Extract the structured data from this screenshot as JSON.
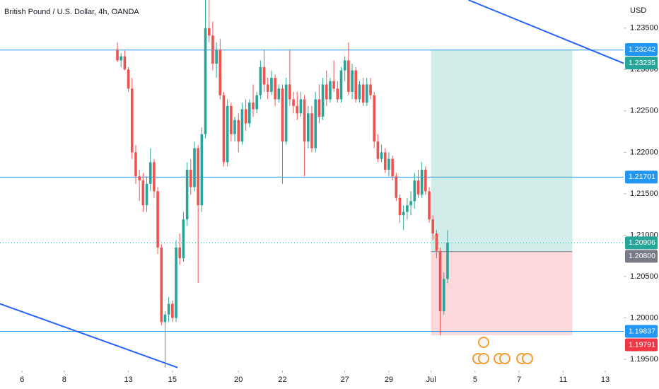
{
  "chart_data": {
    "type": "candlestick",
    "title": "British Pound / U.S. Dollar, 4h, OANDA",
    "currency": "USD",
    "up_color": "#26a69a",
    "down_color": "#ef5350",
    "open": [
      1.2324,
      1.2311,
      1.2316,
      1.23,
      1.2277,
      1.22,
      1.2171,
      1.2166,
      1.2136,
      1.2162,
      1.2188,
      1.2153,
      1.2085,
      1.1995,
      1.2004,
      1.2017,
      1.2,
      1.2085,
      1.2072,
      1.2119,
      1.2179,
      1.2158,
      1.2205,
      1.2136,
      1.2222,
      1.235,
      1.2341,
      1.2307,
      1.2324,
      1.2269,
      1.2188,
      1.2256,
      1.2222,
      1.2239,
      1.2213,
      1.2252,
      1.2235,
      1.226,
      1.2252,
      1.2269,
      1.2303,
      1.2282,
      1.2273,
      1.229,
      1.2264,
      1.2277,
      1.2213,
      1.2282,
      1.2264,
      1.2256,
      1.2247,
      1.2264,
      1.2213,
      1.2247,
      1.2205,
      1.2264,
      1.2243,
      1.2282,
      1.2264,
      1.2286,
      1.2277,
      1.2264,
      1.2299,
      1.2311,
      1.2273,
      1.2299,
      1.2264,
      1.2282,
      1.226,
      1.2282,
      1.2269,
      1.2213,
      1.2192,
      1.22,
      1.2179,
      1.2192,
      1.2171,
      1.2145,
      1.2124,
      1.2128,
      1.2136,
      1.2141,
      1.2166,
      1.2149,
      1.2179,
      1.2153,
      1.2119,
      1.2102,
      1.2081,
      1.2008,
      1.2047
    ],
    "high": [
      1.2333,
      1.232,
      1.2323,
      1.2303,
      1.229,
      1.2209,
      1.2179,
      1.2175,
      1.2171,
      1.2205,
      1.2192,
      1.2158,
      1.2089,
      1.2008,
      1.2025,
      1.2021,
      1.2094,
      1.2102,
      1.2128,
      1.2188,
      1.2192,
      1.2213,
      1.2209,
      1.223,
      1.2384,
      1.2384,
      1.2358,
      1.2333,
      1.2337,
      1.2273,
      1.2264,
      1.226,
      1.2243,
      1.2247,
      1.226,
      1.2264,
      1.2264,
      1.2282,
      1.2273,
      1.2311,
      1.2324,
      1.229,
      1.2299,
      1.2294,
      1.2282,
      1.2282,
      1.229,
      1.2324,
      1.2273,
      1.2273,
      1.2273,
      1.2269,
      1.2256,
      1.2256,
      1.2273,
      1.2282,
      1.229,
      1.2299,
      1.229,
      1.2311,
      1.2286,
      1.2303,
      1.2316,
      1.2333,
      1.2307,
      1.2303,
      1.2286,
      1.229,
      1.229,
      1.229,
      1.2273,
      1.2222,
      1.2209,
      1.2205,
      1.22,
      1.2196,
      1.2175,
      1.2149,
      1.2136,
      1.2145,
      1.2153,
      1.2175,
      1.2179,
      1.2188,
      1.2183,
      1.2158,
      1.2124,
      1.2106,
      1.2085,
      1.2055,
      1.2106
    ],
    "low": [
      1.2309,
      1.2303,
      1.2299,
      1.2273,
      1.2192,
      1.2162,
      1.2141,
      1.2128,
      1.2128,
      1.2153,
      1.2145,
      1.2077,
      1.1991,
      1.194,
      1.1995,
      1.1995,
      1.1995,
      1.2064,
      1.2068,
      1.2111,
      1.2149,
      1.2153,
      1.2042,
      1.2128,
      1.2217,
      1.2333,
      1.2299,
      1.229,
      1.2264,
      1.2183,
      1.2183,
      1.2213,
      1.2213,
      1.22,
      1.2209,
      1.2226,
      1.223,
      1.2243,
      1.2247,
      1.2264,
      1.2273,
      1.2264,
      1.2269,
      1.2256,
      1.226,
      1.2162,
      1.2209,
      1.2256,
      1.2247,
      1.2239,
      1.2243,
      1.2171,
      1.2205,
      1.22,
      1.22,
      1.2235,
      1.2239,
      1.2256,
      1.226,
      1.2273,
      1.226,
      1.226,
      1.2286,
      1.2269,
      1.2264,
      1.226,
      1.226,
      1.2256,
      1.2256,
      1.2264,
      1.2205,
      1.2188,
      1.2188,
      1.2175,
      1.2171,
      1.2166,
      1.2141,
      1.2115,
      1.2106,
      1.2119,
      1.2124,
      1.2132,
      1.2145,
      1.2145,
      1.2149,
      1.2115,
      1.2094,
      1.2072,
      1.1979,
      1.2004,
      1.2042
    ],
    "close": [
      1.2311,
      1.2316,
      1.23,
      1.2277,
      1.22,
      1.2171,
      1.2166,
      1.2136,
      1.2162,
      1.2188,
      1.2153,
      1.2085,
      1.1995,
      1.2004,
      1.2017,
      1.2,
      1.2085,
      1.2072,
      1.2119,
      1.2179,
      1.2158,
      1.2205,
      1.2136,
      1.2222,
      1.235,
      1.2341,
      1.2307,
      1.2324,
      1.2269,
      1.2188,
      1.2256,
      1.2222,
      1.2239,
      1.2213,
      1.2252,
      1.2235,
      1.226,
      1.2252,
      1.2269,
      1.2303,
      1.2282,
      1.2273,
      1.229,
      1.2264,
      1.2277,
      1.2213,
      1.2282,
      1.2264,
      1.2256,
      1.2247,
      1.2264,
      1.2213,
      1.2247,
      1.2205,
      1.2264,
      1.2243,
      1.2282,
      1.2264,
      1.2286,
      1.2277,
      1.2264,
      1.2299,
      1.2311,
      1.2273,
      1.2299,
      1.2264,
      1.2282,
      1.226,
      1.2282,
      1.2269,
      1.2213,
      1.2192,
      1.22,
      1.2179,
      1.2192,
      1.2171,
      1.2145,
      1.2124,
      1.2128,
      1.2136,
      1.2141,
      1.2166,
      1.2149,
      1.2179,
      1.2153,
      1.2119,
      1.2102,
      1.2081,
      1.2008,
      1.2047,
      1.2091
    ],
    "xlim": [
      -32,
      138
    ],
    "xticks": [
      {
        "value": -26,
        "label": "6"
      },
      {
        "value": -14.5,
        "label": "8"
      },
      {
        "value": 3,
        "label": "13"
      },
      {
        "value": 15,
        "label": "15"
      },
      {
        "value": 33,
        "label": "20"
      },
      {
        "value": 45,
        "label": "22"
      },
      {
        "value": 62,
        "label": "27"
      },
      {
        "value": 74,
        "label": "29"
      },
      {
        "value": 85.5,
        "label": "Jul"
      },
      {
        "value": 97.5,
        "label": "5"
      },
      {
        "value": 109.5,
        "label": "7"
      },
      {
        "value": 121.5,
        "label": "11"
      },
      {
        "value": 133,
        "label": "13"
      }
    ],
    "ylim": [
      1.1938,
      1.2384
    ],
    "yticks": [
      {
        "value": 1.235,
        "label": "1.23500"
      },
      {
        "value": 1.23,
        "label": "1.23000"
      },
      {
        "value": 1.225,
        "label": "1.22500"
      },
      {
        "value": 1.22,
        "label": "1.22000"
      },
      {
        "value": 1.215,
        "label": "1.21500"
      },
      {
        "value": 1.21,
        "label": "1.21000"
      },
      {
        "value": 1.205,
        "label": "1.20500"
      },
      {
        "value": 1.2,
        "label": "1.20000"
      },
      {
        "value": 1.195,
        "label": "1.19500"
      }
    ],
    "price_labels": [
      {
        "value": 1.23242,
        "label": "1.23242",
        "color": "#2196f3"
      },
      {
        "value": 1.23235,
        "label": "1.23235",
        "color": "#26a69a",
        "line": "solid"
      },
      {
        "value": 1.21701,
        "label": "1.21701",
        "color": "#2196f3",
        "line": "solid"
      },
      {
        "value": 1.20906,
        "label": "1.20906",
        "color": "#26a69a",
        "line": "dotted"
      },
      {
        "value": 1.208,
        "label": "1.20800",
        "color": "#787b86"
      },
      {
        "value": 1.19837,
        "label": "1.19837",
        "color": "#2196f3",
        "line": "solid"
      },
      {
        "value": 1.19791,
        "label": "1.19791",
        "color": "#f23645"
      }
    ],
    "line_color": "#2196f3",
    "position": {
      "x": [
        85.5,
        124
      ],
      "target": 1.23235,
      "entry": 1.208,
      "stop": 1.19791,
      "profit_color": "#d2ede9",
      "loss_color": "#fbd9db"
    },
    "trendlines": [
      {
        "x": [
          95.7,
          138.3
        ],
        "y": [
          1.2384,
          1.2307
        ],
        "color": "#2962ff"
      },
      {
        "x": [
          -32,
          16.4
        ],
        "y": [
          1.2017,
          1.194
        ],
        "color": "#2962ff"
      }
    ]
  }
}
